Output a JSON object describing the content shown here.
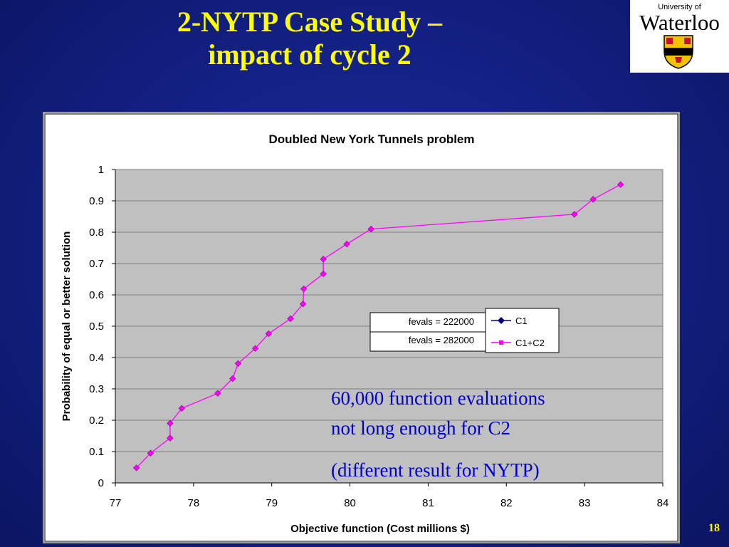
{
  "slide": {
    "title_line1": "2-NYTP Case Study –",
    "title_line2": "impact of cycle 2",
    "logo": {
      "university_of": "University of",
      "name": "Waterloo"
    },
    "annotation_line1": "60,000 function evaluations",
    "annotation_line2": "not long enough for C2",
    "annotation_line3": "(different result for NYTP)",
    "page_number": "18",
    "colors": {
      "background": "#121f80",
      "title": "#ffff00",
      "annotation": "#0000cc",
      "plot_area": "#c0c0c0"
    }
  },
  "chart_data": {
    "type": "line",
    "title": "Doubled New York Tunnels problem",
    "xlabel": "Objective function (Cost millions $)",
    "ylabel": "Probability of equal or better solution",
    "xlim": [
      77,
      84
    ],
    "ylim": [
      0,
      1
    ],
    "xticks": [
      "77",
      "78",
      "79",
      "80",
      "81",
      "82",
      "83",
      "84"
    ],
    "yticks": [
      "0",
      "0.1",
      "0.2",
      "0.3",
      "0.4",
      "0.5",
      "0.6",
      "0.7",
      "0.8",
      "0.9",
      "1"
    ],
    "grid": true,
    "legend_placement": "center-right",
    "series": [
      {
        "name": "C1",
        "color": "#000080",
        "marker": "diamond",
        "x": [],
        "y": []
      },
      {
        "name": "C1+C2",
        "color": "#ff00ff",
        "marker": "square",
        "x": [
          77.27,
          77.45,
          77.7,
          77.7,
          77.85,
          78.31,
          78.5,
          78.57,
          78.79,
          78.96,
          79.24,
          79.4,
          79.41,
          79.66,
          79.66,
          79.96,
          80.27,
          82.87,
          83.11,
          83.46
        ],
        "y": [
          0.048,
          0.095,
          0.143,
          0.19,
          0.238,
          0.286,
          0.333,
          0.381,
          0.429,
          0.476,
          0.524,
          0.571,
          0.619,
          0.667,
          0.714,
          0.762,
          0.81,
          0.857,
          0.905,
          0.952
        ]
      }
    ],
    "legend_table": [
      {
        "label": "fevals = 222000",
        "series": "C1"
      },
      {
        "label": "fevals = 282000",
        "series": "C1+C2"
      }
    ]
  }
}
